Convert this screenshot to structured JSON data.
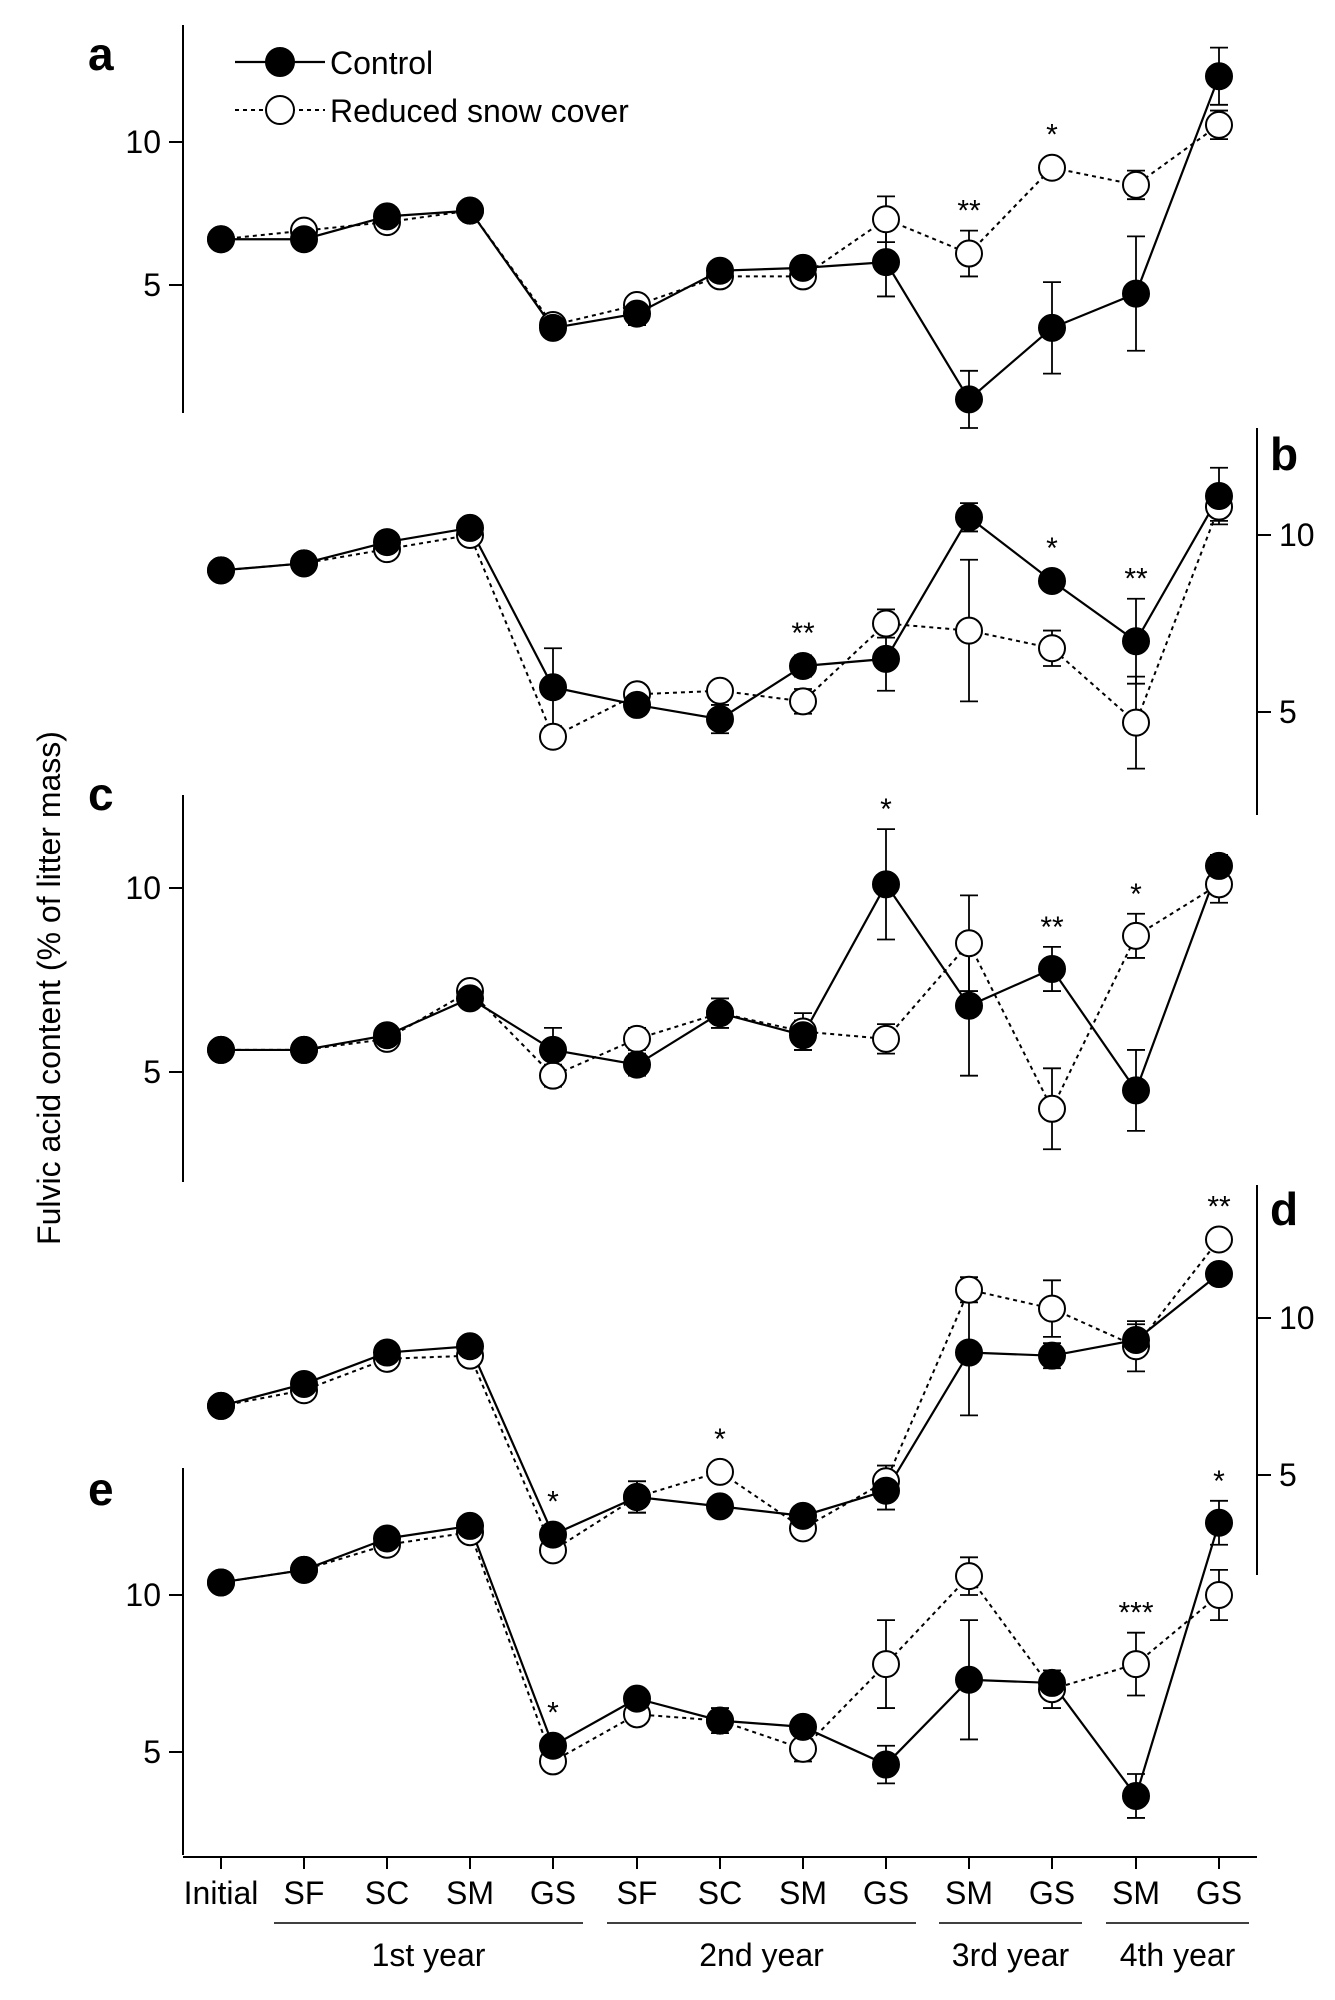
{
  "chart_data": {
    "type": "line",
    "ylabel": "Fulvic acid content (% of litter mass)",
    "categories": [
      "Initial",
      "SF",
      "SC",
      "SM",
      "GS",
      "SF",
      "SC",
      "SM",
      "GS",
      "SM",
      "GS",
      "SM",
      "GS"
    ],
    "groups": [
      {
        "label": "1st year",
        "from": 1,
        "to": 4
      },
      {
        "label": "2nd year",
        "from": 5,
        "to": 8
      },
      {
        "label": "3rd year",
        "from": 9,
        "to": 10
      },
      {
        "label": "4th year",
        "from": 11,
        "to": 12
      }
    ],
    "legend": {
      "position": "top-left",
      "entries": [
        {
          "name": "Control",
          "marker": "filled-circle",
          "line": "solid"
        },
        {
          "name": "Reduced snow cover",
          "marker": "open-circle",
          "line": "dotted"
        }
      ]
    },
    "panels": [
      {
        "letter": "a",
        "yaxis_side": "left",
        "yticks": [
          5,
          10
        ],
        "series": [
          {
            "name": "Control",
            "values": [
              6.6,
              6.6,
              7.4,
              7.6,
              3.5,
              4.0,
              5.5,
              5.6,
              5.8,
              1.0,
              3.5,
              4.7,
              12.3
            ],
            "errors": [
              0.2,
              0.2,
              0.2,
              0.2,
              0.15,
              0.4,
              0.3,
              0.25,
              1.2,
              1.0,
              1.6,
              2.0,
              1.0
            ]
          },
          {
            "name": "Reduced snow cover",
            "values": [
              6.6,
              6.9,
              7.2,
              7.6,
              3.6,
              4.3,
              5.3,
              5.3,
              7.3,
              6.1,
              9.1,
              8.5,
              10.6
            ],
            "errors": [
              0.2,
              0.25,
              0.2,
              0.2,
              0.15,
              0.2,
              0.25,
              0.25,
              0.8,
              0.8,
              0.3,
              0.5,
              0.5
            ]
          }
        ],
        "annotations": [
          {
            "index": 9,
            "text": "**"
          },
          {
            "index": 10,
            "text": "*"
          }
        ]
      },
      {
        "letter": "b",
        "yaxis_side": "right",
        "yticks": [
          5,
          10
        ],
        "series": [
          {
            "name": "Control",
            "values": [
              9.0,
              9.2,
              9.8,
              10.2,
              5.7,
              5.2,
              4.8,
              6.3,
              6.5,
              10.5,
              8.7,
              7.0,
              11.1
            ],
            "errors": [
              0.2,
              0.2,
              0.2,
              0.2,
              1.1,
              0.25,
              0.4,
              0.3,
              0.9,
              0.4,
              0.25,
              1.2,
              0.8
            ]
          },
          {
            "name": "Reduced snow cover",
            "values": [
              9.0,
              9.2,
              9.6,
              10.0,
              4.3,
              5.5,
              5.6,
              5.3,
              7.5,
              7.3,
              6.8,
              4.7,
              10.8
            ],
            "errors": [
              0.2,
              0.2,
              0.2,
              0.2,
              0.2,
              0.2,
              0.25,
              0.35,
              0.4,
              2.0,
              0.5,
              1.3,
              0.4
            ]
          }
        ],
        "annotations": [
          {
            "index": 7,
            "text": "**"
          },
          {
            "index": 10,
            "text": "*"
          },
          {
            "index": 11,
            "text": "**"
          }
        ]
      },
      {
        "letter": "c",
        "yaxis_side": "left",
        "yticks": [
          5,
          10
        ],
        "series": [
          {
            "name": "Control",
            "values": [
              5.6,
              5.6,
              6.0,
              7.0,
              5.6,
              5.2,
              6.6,
              6.0,
              10.1,
              6.8,
              7.8,
              4.5,
              10.6
            ],
            "errors": [
              0.2,
              0.2,
              0.2,
              0.2,
              0.6,
              0.3,
              0.4,
              0.4,
              1.5,
              1.9,
              0.6,
              1.1,
              0.3
            ]
          },
          {
            "name": "Reduced snow cover",
            "values": [
              5.6,
              5.6,
              5.9,
              7.2,
              4.9,
              5.9,
              6.6,
              6.1,
              5.9,
              8.5,
              4.0,
              8.7,
              10.1
            ],
            "errors": [
              0.2,
              0.2,
              0.2,
              0.25,
              0.3,
              0.3,
              0.4,
              0.5,
              0.4,
              1.3,
              1.1,
              0.6,
              0.5
            ]
          }
        ],
        "annotations": [
          {
            "index": 8,
            "text": "*"
          },
          {
            "index": 10,
            "text": "**"
          },
          {
            "index": 11,
            "text": "*"
          }
        ]
      },
      {
        "letter": "d",
        "yaxis_side": "right",
        "yticks": [
          5,
          10
        ],
        "series": [
          {
            "name": "Control",
            "values": [
              7.2,
              7.9,
              8.9,
              9.1,
              3.1,
              4.3,
              4.0,
              3.7,
              4.5,
              8.9,
              8.8,
              9.3,
              11.4
            ],
            "errors": [
              0.2,
              0.2,
              0.2,
              0.2,
              0.2,
              0.5,
              0.3,
              0.3,
              0.6,
              2.0,
              0.4,
              0.5,
              0.3
            ]
          },
          {
            "name": "Reduced snow cover",
            "values": [
              7.2,
              7.7,
              8.7,
              8.8,
              2.6,
              4.3,
              5.1,
              3.3,
              4.8,
              10.9,
              10.3,
              9.1,
              12.5
            ],
            "errors": [
              0.2,
              0.2,
              0.2,
              0.2,
              0.2,
              0.5,
              0.2,
              0.2,
              0.5,
              0.4,
              0.9,
              0.8,
              0.3
            ]
          }
        ],
        "annotations": [
          {
            "index": 4,
            "text": "*"
          },
          {
            "index": 6,
            "text": "*"
          },
          {
            "index": 12,
            "text": "**"
          }
        ]
      },
      {
        "letter": "e",
        "yaxis_side": "left",
        "yticks": [
          5,
          10
        ],
        "series": [
          {
            "name": "Control",
            "values": [
              10.4,
              10.8,
              11.8,
              12.2,
              5.2,
              6.7,
              6.0,
              5.8,
              4.6,
              7.3,
              7.2,
              3.6,
              12.3
            ],
            "errors": [
              0.2,
              0.2,
              0.2,
              0.2,
              0.3,
              0.2,
              0.4,
              0.2,
              0.6,
              1.9,
              0.4,
              0.7,
              0.7
            ]
          },
          {
            "name": "Reduced snow cover",
            "values": [
              10.4,
              10.8,
              11.6,
              12.0,
              4.7,
              6.2,
              6.0,
              5.1,
              7.8,
              10.6,
              7.0,
              7.8,
              10.0
            ],
            "errors": [
              0.2,
              0.2,
              0.2,
              0.2,
              0.2,
              0.2,
              0.3,
              0.4,
              1.4,
              0.6,
              0.6,
              1.0,
              0.8
            ]
          }
        ],
        "annotations": [
          {
            "index": 4,
            "text": "*"
          },
          {
            "index": 11,
            "text": "***"
          },
          {
            "index": 12,
            "text": "*"
          }
        ]
      }
    ]
  }
}
